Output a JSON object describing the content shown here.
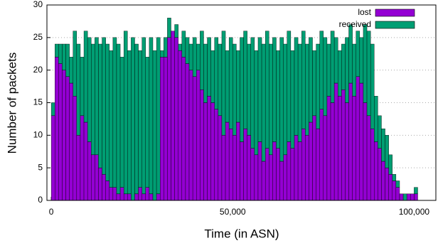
{
  "chart_data": {
    "type": "stacked_histogram",
    "x_label": "Time (in ASN)",
    "y_label": "Number of packets",
    "bins": [
      0,
      1000,
      2000,
      3000,
      4000,
      5000,
      6000,
      7000,
      8000,
      9000,
      10000,
      11000,
      12000,
      13000,
      14000,
      15000,
      16000,
      17000,
      18000,
      19000,
      20000,
      21000,
      22000,
      23000,
      24000,
      25000,
      26000,
      27000,
      28000,
      29000,
      30000,
      31000,
      32000,
      33000,
      34000,
      35000,
      36000,
      37000,
      38000,
      39000,
      40000,
      41000,
      42000,
      43000,
      44000,
      45000,
      46000,
      47000,
      48000,
      49000,
      50000,
      51000,
      52000,
      53000,
      54000,
      55000,
      56000,
      57000,
      58000,
      59000,
      60000,
      61000,
      62000,
      63000,
      64000,
      65000,
      66000,
      67000,
      68000,
      69000,
      70000,
      71000,
      72000,
      73000,
      74000,
      75000,
      76000,
      77000,
      78000,
      79000,
      80000,
      81000,
      82000,
      83000,
      84000,
      85000,
      86000,
      87000,
      88000,
      89000,
      90000,
      91000,
      92000,
      93000,
      94000,
      95000,
      96000,
      97000,
      98000,
      99000,
      100000,
      101000
    ],
    "series": [
      {
        "name": "lost",
        "color": "#9400d3",
        "values": [
          13,
          22,
          21,
          20,
          19,
          18,
          16,
          10,
          13,
          12,
          9,
          7,
          7,
          5,
          4,
          3,
          2,
          2,
          1,
          2,
          1,
          1,
          0,
          1,
          2,
          1,
          2,
          1,
          0,
          1,
          22,
          22,
          25,
          26,
          25,
          23,
          22,
          21,
          20,
          19,
          20,
          17,
          15,
          16,
          15,
          14,
          13,
          10,
          12,
          11,
          10,
          12,
          9,
          11,
          10,
          8,
          7,
          9,
          6,
          8,
          7,
          9,
          8,
          6,
          7,
          9,
          8,
          10,
          9,
          11,
          10,
          12,
          13,
          11,
          14,
          13,
          16,
          15,
          18,
          16,
          17,
          15,
          18,
          16,
          19,
          18,
          15,
          13,
          11,
          9,
          8,
          6,
          5,
          4,
          3,
          2,
          1,
          0,
          1,
          1,
          1
        ]
      },
      {
        "name": "received",
        "color": "#009e73",
        "values": [
          2,
          2,
          3,
          4,
          5,
          4,
          10,
          14,
          9,
          14,
          16,
          17,
          18,
          19,
          21,
          21,
          21,
          23,
          23,
          20,
          25,
          22,
          25,
          23,
          21,
          24,
          20,
          24,
          23,
          24,
          1,
          3,
          3,
          0,
          2,
          1,
          4,
          4,
          4,
          6,
          4,
          9,
          9,
          9,
          8,
          11,
          11,
          16,
          11,
          14,
          14,
          11,
          16,
          15,
          14,
          17,
          16,
          16,
          18,
          18,
          17,
          16,
          15,
          19,
          17,
          17,
          15,
          15,
          15,
          15,
          14,
          13,
          10,
          13,
          12,
          12,
          8,
          11,
          7,
          7,
          7,
          10,
          9,
          8,
          7,
          7,
          12,
          13,
          13,
          7,
          5,
          5,
          5,
          3,
          1,
          1,
          0,
          1,
          0,
          0,
          1
        ]
      }
    ],
    "xlim": [
      -1200,
      106000
    ],
    "ylim": [
      0,
      30
    ],
    "xticks": [
      0,
      {
        "value": 50000,
        "label": "50,000"
      },
      {
        "value": 100000,
        "label": "100,000"
      }
    ],
    "yticks": [
      0,
      5,
      10,
      15,
      20,
      25,
      30
    ],
    "grid": true,
    "legend": "top-right"
  }
}
